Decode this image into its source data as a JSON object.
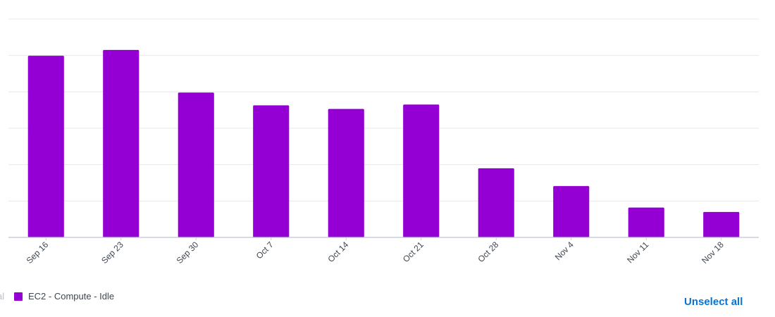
{
  "chart_data": {
    "type": "bar",
    "categories": [
      "Sep 16",
      "Sep 23",
      "Sep 30",
      "Oct 7",
      "Oct 14",
      "Oct 21",
      "Oct 28",
      "Nov 4",
      "Nov 11",
      "Nov 18"
    ],
    "series": [
      {
        "name": "EC2 - Compute - Idle",
        "values": [
          4.99,
          5.15,
          3.98,
          3.63,
          3.53,
          3.65,
          1.9,
          1.41,
          0.82,
          0.7
        ]
      }
    ],
    "ylim": [
      0,
      6
    ],
    "grid": true,
    "legend_placement": "bottom-left"
  },
  "legend": {
    "cutoff_text": "al",
    "items": [
      {
        "label": "EC2 - Compute - Idle",
        "color": "#9400d3"
      }
    ]
  },
  "controls": {
    "unselect_all_label": "Unselect all"
  }
}
